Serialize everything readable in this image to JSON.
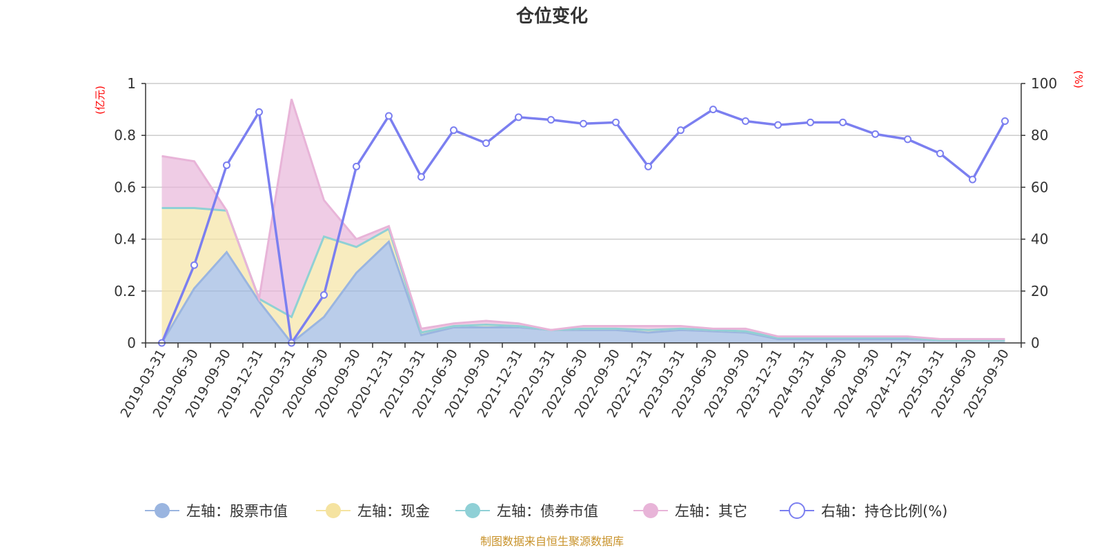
{
  "chart_data": {
    "type": "area",
    "title": "仓位变化",
    "left_axis_unit": "(亿元)",
    "right_axis_unit": "(%)",
    "left_ylim": [
      0,
      1
    ],
    "right_ylim": [
      0,
      100
    ],
    "left_ticks": [
      "0",
      "0.2",
      "0.4",
      "0.6",
      "0.8",
      "1"
    ],
    "right_ticks": [
      "0",
      "20",
      "40",
      "60",
      "80",
      "100"
    ],
    "categories": [
      "2019-03-31",
      "2019-06-30",
      "2019-09-30",
      "2019-12-31",
      "2020-03-31",
      "2020-06-30",
      "2020-09-30",
      "2020-12-31",
      "2021-03-31",
      "2021-06-30",
      "2021-09-30",
      "2021-12-31",
      "2022-03-31",
      "2022-06-30",
      "2022-09-30",
      "2022-12-31",
      "2023-03-31",
      "2023-06-30",
      "2023-09-30",
      "2023-12-31",
      "2024-03-31",
      "2024-06-30",
      "2024-09-30",
      "2024-12-31",
      "2025-03-31",
      "2025-06-30",
      "2025-09-30"
    ],
    "series": [
      {
        "name": "左轴：股票市值",
        "axis": "left",
        "color": "#9ab5e0",
        "values": [
          0,
          0.21,
          0.35,
          0.16,
          0,
          0.1,
          0.27,
          0.39,
          0.03,
          0.06,
          0.06,
          0.06,
          0.05,
          0.05,
          0.05,
          0.04,
          0.05,
          0.045,
          0.04,
          0.015,
          0.015,
          0.015,
          0.015,
          0.015,
          0.01,
          0.01,
          0.01
        ]
      },
      {
        "name": "左轴：现金",
        "axis": "left",
        "color": "#f5e3a0",
        "values": [
          0.52,
          0.31,
          0.16,
          0.01,
          0.1,
          0.31,
          0.1,
          0.05,
          0.01,
          0.005,
          0.01,
          0.005,
          0.0,
          0.005,
          0.005,
          0.01,
          0.005,
          0.005,
          0.005,
          0.005,
          0.005,
          0.005,
          0.005,
          0.005,
          0.0,
          0.0,
          0.0
        ]
      },
      {
        "name": "左轴：债券市值",
        "axis": "left",
        "color": "#8fd0d6",
        "values": [
          0,
          0,
          0,
          0,
          0,
          0,
          0,
          0,
          0,
          0,
          0,
          0,
          0,
          0,
          0,
          0,
          0,
          0,
          0,
          0,
          0,
          0,
          0,
          0,
          0,
          0,
          0
        ]
      },
      {
        "name": "左轴：其它",
        "axis": "left",
        "color": "#e8b4d8",
        "values": [
          0.2,
          0.18,
          0.0,
          0.0,
          0.84,
          0.14,
          0.03,
          0.01,
          0.015,
          0.01,
          0.015,
          0.01,
          0.0,
          0.01,
          0.01,
          0.015,
          0.01,
          0.005,
          0.01,
          0.005,
          0.005,
          0.005,
          0.005,
          0.005,
          0.005,
          0.005,
          0.005
        ]
      },
      {
        "name": "右轴：持仓比例(%)",
        "axis": "right",
        "color": "#7b7ff0",
        "values": [
          0,
          30,
          68.5,
          89,
          0,
          18.5,
          68,
          87.5,
          64,
          82,
          77,
          87,
          86,
          84.5,
          85,
          68,
          82,
          90,
          85.5,
          84,
          85,
          85,
          80.5,
          78.5,
          73,
          63,
          85.5
        ]
      }
    ],
    "legend_position": "bottom",
    "source": "制图数据来自恒生聚源数据库"
  }
}
